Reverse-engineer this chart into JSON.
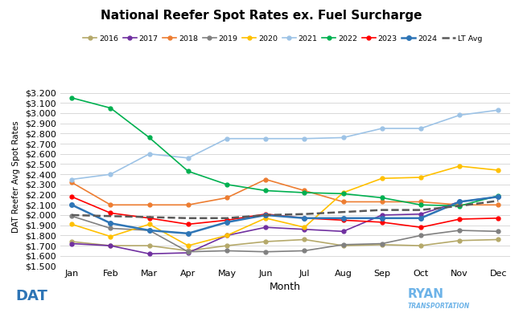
{
  "title": "National Reefer Spot Rates ex. Fuel Surcharge",
  "xlabel": "Month",
  "ylabel": "DAT Reefer Avg Spot Rates",
  "months": [
    "Jan",
    "Feb",
    "Mar",
    "Apr",
    "May",
    "Jun",
    "Jul",
    "Aug",
    "Sep",
    "Oct",
    "Nov",
    "Dec"
  ],
  "ylim": [
    1.5,
    3.25
  ],
  "yticks": [
    1.5,
    1.6,
    1.7,
    1.8,
    1.9,
    2.0,
    2.1,
    2.2,
    2.3,
    2.4,
    2.5,
    2.6,
    2.7,
    2.8,
    2.9,
    3.0,
    3.1,
    3.2
  ],
  "series": {
    "2016": {
      "color": "#b5a96a",
      "marker": "o",
      "linewidth": 1.2,
      "markersize": 3.5,
      "linestyle": "-",
      "data": [
        1.74,
        1.7,
        1.7,
        1.65,
        1.7,
        1.74,
        1.76,
        1.7,
        1.71,
        1.7,
        1.75,
        1.76
      ]
    },
    "2017": {
      "color": "#7030a0",
      "marker": "o",
      "linewidth": 1.2,
      "markersize": 3.5,
      "linestyle": "-",
      "data": [
        1.72,
        1.7,
        1.62,
        1.63,
        1.8,
        1.88,
        1.86,
        1.84,
        2.0,
        2.01,
        2.13,
        2.18
      ]
    },
    "2018": {
      "color": "#ed7d31",
      "marker": "o",
      "linewidth": 1.2,
      "markersize": 3.5,
      "linestyle": "-",
      "data": [
        2.32,
        2.1,
        2.1,
        2.1,
        2.17,
        2.35,
        2.24,
        2.13,
        2.13,
        2.13,
        2.1,
        2.1
      ]
    },
    "2019": {
      "color": "#808080",
      "marker": "o",
      "linewidth": 1.2,
      "markersize": 3.5,
      "linestyle": "-",
      "data": [
        1.99,
        1.87,
        1.85,
        1.64,
        1.65,
        1.64,
        1.65,
        1.71,
        1.72,
        1.8,
        1.85,
        1.84
      ]
    },
    "2020": {
      "color": "#ffc000",
      "marker": "o",
      "linewidth": 1.2,
      "markersize": 3.5,
      "linestyle": "-",
      "data": [
        1.91,
        1.79,
        1.91,
        1.7,
        1.8,
        1.97,
        1.88,
        2.22,
        2.36,
        2.37,
        2.48,
        2.44
      ]
    },
    "2021": {
      "color": "#9dc3e6",
      "marker": "o",
      "linewidth": 1.2,
      "markersize": 3.5,
      "linestyle": "-",
      "data": [
        2.35,
        2.4,
        2.6,
        2.56,
        2.75,
        2.75,
        2.75,
        2.76,
        2.85,
        2.85,
        2.98,
        3.03
      ]
    },
    "2022": {
      "color": "#00b050",
      "marker": "o",
      "linewidth": 1.2,
      "markersize": 3.5,
      "linestyle": "-",
      "data": [
        3.15,
        3.05,
        2.76,
        2.43,
        2.3,
        2.24,
        2.22,
        2.21,
        2.17,
        2.1,
        2.09,
        2.19
      ]
    },
    "2023": {
      "color": "#ff0000",
      "marker": "o",
      "linewidth": 1.2,
      "markersize": 3.5,
      "linestyle": "-",
      "data": [
        2.18,
        2.02,
        1.97,
        1.91,
        1.95,
        2.01,
        1.97,
        1.95,
        1.93,
        1.88,
        1.96,
        1.97
      ]
    },
    "2024": {
      "color": "#2e75b6",
      "marker": "o",
      "linewidth": 1.8,
      "markersize": 4,
      "linestyle": "-",
      "data": [
        2.1,
        1.92,
        1.85,
        1.82,
        1.93,
        2.0,
        1.97,
        1.97,
        1.97,
        1.97,
        2.13,
        2.18
      ]
    },
    "LT Avg": {
      "color": "#595959",
      "marker": null,
      "linewidth": 1.8,
      "markersize": 0,
      "linestyle": "--",
      "data": [
        2.0,
        1.99,
        1.98,
        1.97,
        1.97,
        2.0,
        2.01,
        2.03,
        2.05,
        2.05,
        2.09,
        2.14
      ]
    }
  },
  "legend_order": [
    "2016",
    "2017",
    "2018",
    "2019",
    "2020",
    "2021",
    "2022",
    "2023",
    "2024",
    "LT Avg"
  ],
  "background_color": "#ffffff",
  "grid_color": "#d9d9d9"
}
